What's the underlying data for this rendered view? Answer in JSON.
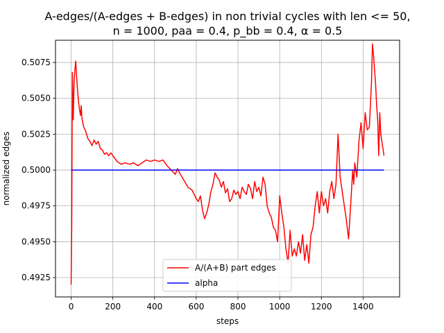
{
  "chart_data": {
    "type": "line",
    "title_line1": "A-edges/(A-edges + B-edges) in non trivial cycles with len <= 50,",
    "title_line2": "n = 1000, paa = 0.4, p_bb = 0.4, α = 0.5",
    "xlabel": "steps",
    "ylabel": "normalized edges",
    "xlim": [
      -75,
      1575
    ],
    "ylim": [
      0.49115,
      0.50905
    ],
    "xticks": [
      0,
      200,
      400,
      600,
      800,
      1000,
      1200,
      1400
    ],
    "xtick_labels": [
      "0",
      "200",
      "400",
      "600",
      "800",
      "1000",
      "1200",
      "1400"
    ],
    "yticks": [
      0.4925,
      0.495,
      0.4975,
      0.5,
      0.5025,
      0.505,
      0.5075
    ],
    "ytick_labels": [
      "0.4925",
      "0.4950",
      "0.4975",
      "0.5000",
      "0.5025",
      "0.5050",
      "0.5075"
    ],
    "grid": true,
    "legend_position": "lower center",
    "series": [
      {
        "name": "A/(A+B) part edges",
        "color": "#ff0000",
        "points": [
          [
            0,
            0.492
          ],
          [
            3,
            0.496
          ],
          [
            6,
            0.5068
          ],
          [
            10,
            0.5035
          ],
          [
            14,
            0.5062
          ],
          [
            18,
            0.507
          ],
          [
            22,
            0.5076
          ],
          [
            26,
            0.5065
          ],
          [
            30,
            0.5057
          ],
          [
            35,
            0.5048
          ],
          [
            40,
            0.5042
          ],
          [
            45,
            0.5038
          ],
          [
            48,
            0.5045
          ],
          [
            52,
            0.5036
          ],
          [
            60,
            0.503
          ],
          [
            70,
            0.5027
          ],
          [
            80,
            0.5022
          ],
          [
            90,
            0.502
          ],
          [
            100,
            0.5017
          ],
          [
            110,
            0.5021
          ],
          [
            120,
            0.5018
          ],
          [
            130,
            0.502
          ],
          [
            140,
            0.5015
          ],
          [
            150,
            0.5014
          ],
          [
            160,
            0.5011
          ],
          [
            170,
            0.5012
          ],
          [
            180,
            0.501
          ],
          [
            190,
            0.5012
          ],
          [
            200,
            0.501
          ],
          [
            210,
            0.5008
          ],
          [
            220,
            0.5006
          ],
          [
            230,
            0.5005
          ],
          [
            240,
            0.5004
          ],
          [
            260,
            0.5005
          ],
          [
            280,
            0.5004
          ],
          [
            300,
            0.5005
          ],
          [
            320,
            0.5003
          ],
          [
            340,
            0.5005
          ],
          [
            360,
            0.5007
          ],
          [
            380,
            0.5006
          ],
          [
            400,
            0.5007
          ],
          [
            420,
            0.5006
          ],
          [
            440,
            0.5007
          ],
          [
            460,
            0.5003
          ],
          [
            480,
            0.5
          ],
          [
            500,
            0.4997
          ],
          [
            510,
            0.5001
          ],
          [
            520,
            0.4998
          ],
          [
            540,
            0.4993
          ],
          [
            560,
            0.4988
          ],
          [
            580,
            0.4986
          ],
          [
            600,
            0.498
          ],
          [
            610,
            0.4978
          ],
          [
            620,
            0.4982
          ],
          [
            630,
            0.4972
          ],
          [
            640,
            0.4966
          ],
          [
            650,
            0.497
          ],
          [
            660,
            0.4976
          ],
          [
            670,
            0.4985
          ],
          [
            680,
            0.499
          ],
          [
            690,
            0.4998
          ],
          [
            700,
            0.4995
          ],
          [
            710,
            0.4993
          ],
          [
            720,
            0.4988
          ],
          [
            730,
            0.4992
          ],
          [
            740,
            0.4984
          ],
          [
            750,
            0.4987
          ],
          [
            760,
            0.4978
          ],
          [
            770,
            0.498
          ],
          [
            780,
            0.4986
          ],
          [
            790,
            0.4983
          ],
          [
            800,
            0.4985
          ],
          [
            810,
            0.498
          ],
          [
            820,
            0.4988
          ],
          [
            830,
            0.4985
          ],
          [
            840,
            0.4983
          ],
          [
            850,
            0.499
          ],
          [
            860,
            0.4987
          ],
          [
            870,
            0.498
          ],
          [
            880,
            0.4992
          ],
          [
            890,
            0.4985
          ],
          [
            900,
            0.4988
          ],
          [
            910,
            0.4982
          ],
          [
            920,
            0.4995
          ],
          [
            930,
            0.499
          ],
          [
            940,
            0.4975
          ],
          [
            950,
            0.497
          ],
          [
            960,
            0.4967
          ],
          [
            970,
            0.496
          ],
          [
            980,
            0.4958
          ],
          [
            990,
            0.495
          ],
          [
            1000,
            0.4982
          ],
          [
            1010,
            0.497
          ],
          [
            1020,
            0.496
          ],
          [
            1030,
            0.4945
          ],
          [
            1040,
            0.4935
          ],
          [
            1050,
            0.4958
          ],
          [
            1060,
            0.494
          ],
          [
            1070,
            0.4945
          ],
          [
            1080,
            0.494
          ],
          [
            1090,
            0.495
          ],
          [
            1100,
            0.4942
          ],
          [
            1110,
            0.4955
          ],
          [
            1120,
            0.4937
          ],
          [
            1130,
            0.4948
          ],
          [
            1140,
            0.4935
          ],
          [
            1150,
            0.4955
          ],
          [
            1160,
            0.496
          ],
          [
            1170,
            0.4975
          ],
          [
            1180,
            0.4985
          ],
          [
            1190,
            0.497
          ],
          [
            1200,
            0.4985
          ],
          [
            1210,
            0.4975
          ],
          [
            1220,
            0.498
          ],
          [
            1230,
            0.497
          ],
          [
            1240,
            0.4985
          ],
          [
            1250,
            0.4992
          ],
          [
            1260,
            0.498
          ],
          [
            1270,
            0.499
          ],
          [
            1280,
            0.5025
          ],
          [
            1290,
            0.4995
          ],
          [
            1300,
            0.4985
          ],
          [
            1310,
            0.4975
          ],
          [
            1320,
            0.4965
          ],
          [
            1330,
            0.4952
          ],
          [
            1340,
            0.4975
          ],
          [
            1350,
            0.5
          ],
          [
            1355,
            0.499
          ],
          [
            1360,
            0.5005
          ],
          [
            1370,
            0.4995
          ],
          [
            1380,
            0.502
          ],
          [
            1390,
            0.5033
          ],
          [
            1400,
            0.5015
          ],
          [
            1410,
            0.504
          ],
          [
            1420,
            0.5028
          ],
          [
            1430,
            0.503
          ],
          [
            1440,
            0.506
          ],
          [
            1445,
            0.5088
          ],
          [
            1450,
            0.508
          ],
          [
            1455,
            0.507
          ],
          [
            1460,
            0.506
          ],
          [
            1465,
            0.5045
          ],
          [
            1470,
            0.5035
          ],
          [
            1475,
            0.501
          ],
          [
            1480,
            0.504
          ],
          [
            1485,
            0.5025
          ],
          [
            1490,
            0.502
          ],
          [
            1495,
            0.5015
          ],
          [
            1500,
            0.501
          ]
        ]
      },
      {
        "name": "alpha",
        "color": "#0000ff",
        "points": [
          [
            0,
            0.5
          ],
          [
            1500,
            0.5
          ]
        ]
      }
    ]
  }
}
